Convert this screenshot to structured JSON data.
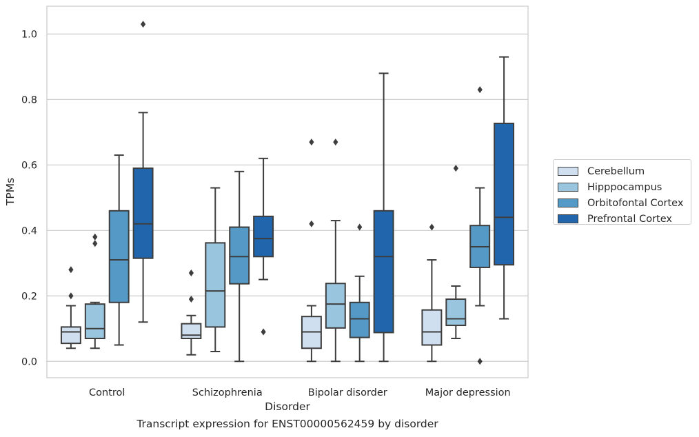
{
  "chart_data": {
    "type": "boxplot",
    "title": "",
    "caption": "Transcript expression for ENST00000562459 by disorder",
    "xlabel": "Disorder",
    "ylabel": "TPMs",
    "ylim": [
      -0.05,
      1.085
    ],
    "yticks": [
      "0.0",
      "0.2",
      "0.4",
      "0.6",
      "0.8",
      "1.0"
    ],
    "categories": [
      "Control",
      "Schizophrenia",
      "Bipolar disorder",
      "Major depression"
    ],
    "grid": "horizontal",
    "legend_position": "center-right, outside",
    "series": [
      {
        "name": "Cerebellum",
        "color": "#cfdff0",
        "boxes": [
          {
            "whisker_low": 0.04,
            "q1": 0.055,
            "median": 0.09,
            "q3": 0.105,
            "whisker_high": 0.17,
            "outliers": [
              0.28,
              0.2
            ]
          },
          {
            "whisker_low": 0.02,
            "q1": 0.07,
            "median": 0.08,
            "q3": 0.115,
            "whisker_high": 0.14,
            "outliers": [
              0.27,
              0.19
            ]
          },
          {
            "whisker_low": 0.0,
            "q1": 0.04,
            "median": 0.09,
            "q3": 0.137,
            "whisker_high": 0.17,
            "outliers": [
              0.67,
              0.42
            ]
          },
          {
            "whisker_low": 0.0,
            "q1": 0.05,
            "median": 0.09,
            "q3": 0.157,
            "whisker_high": 0.31,
            "outliers": [
              0.41
            ]
          }
        ]
      },
      {
        "name": "Hipppocampus",
        "color": "#9ac5de",
        "boxes": [
          {
            "whisker_low": 0.04,
            "q1": 0.07,
            "median": 0.1,
            "q3": 0.175,
            "whisker_high": 0.18,
            "outliers": [
              0.38,
              0.36
            ]
          },
          {
            "whisker_low": 0.03,
            "q1": 0.105,
            "median": 0.215,
            "q3": 0.362,
            "whisker_high": 0.53,
            "outliers": []
          },
          {
            "whisker_low": 0.0,
            "q1": 0.102,
            "median": 0.175,
            "q3": 0.238,
            "whisker_high": 0.43,
            "outliers": [
              0.67
            ]
          },
          {
            "whisker_low": 0.07,
            "q1": 0.11,
            "median": 0.13,
            "q3": 0.19,
            "whisker_high": 0.23,
            "outliers": [
              0.59
            ]
          }
        ]
      },
      {
        "name": "Orbitofontal Cortex",
        "color": "#5599c6",
        "boxes": [
          {
            "whisker_low": 0.05,
            "q1": 0.18,
            "median": 0.31,
            "q3": 0.46,
            "whisker_high": 0.63,
            "outliers": []
          },
          {
            "whisker_low": 0.0,
            "q1": 0.237,
            "median": 0.32,
            "q3": 0.41,
            "whisker_high": 0.58,
            "outliers": []
          },
          {
            "whisker_low": 0.0,
            "q1": 0.073,
            "median": 0.13,
            "q3": 0.18,
            "whisker_high": 0.26,
            "outliers": [
              0.41
            ]
          },
          {
            "whisker_low": 0.17,
            "q1": 0.287,
            "median": 0.35,
            "q3": 0.415,
            "whisker_high": 0.53,
            "outliers": [
              0.83,
              0.0
            ]
          }
        ]
      },
      {
        "name": "Prefrontal Cortex",
        "color": "#2166ac",
        "boxes": [
          {
            "whisker_low": 0.12,
            "q1": 0.315,
            "median": 0.42,
            "q3": 0.59,
            "whisker_high": 0.76,
            "outliers": [
              1.03
            ]
          },
          {
            "whisker_low": 0.25,
            "q1": 0.32,
            "median": 0.375,
            "q3": 0.443,
            "whisker_high": 0.62,
            "outliers": [
              0.09
            ]
          },
          {
            "whisker_low": 0.0,
            "q1": 0.088,
            "median": 0.32,
            "q3": 0.46,
            "whisker_high": 0.88,
            "outliers": []
          },
          {
            "whisker_low": 0.13,
            "q1": 0.295,
            "median": 0.44,
            "q3": 0.727,
            "whisker_high": 0.93,
            "outliers": []
          }
        ]
      }
    ]
  }
}
